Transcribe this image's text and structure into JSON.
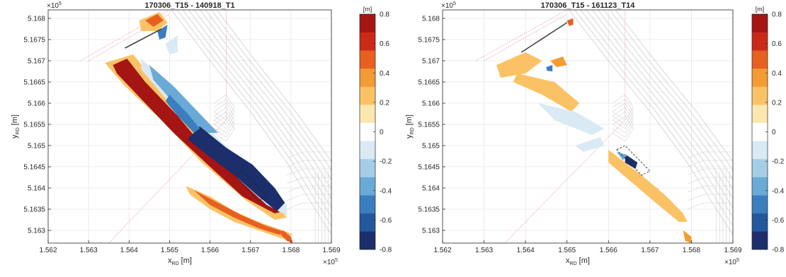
{
  "palette": [
    "#1c2e6b",
    "#23589f",
    "#3b7ec0",
    "#6aaad6",
    "#a5cde6",
    "#d9eaf5",
    "#ffffff",
    "#fde7b0",
    "#fbc265",
    "#f49b33",
    "#e8601f",
    "#cc2a19",
    "#a51513"
  ],
  "chart_data": [
    {
      "type": "heatmap",
      "title": "170306_T15 - 140918_T1",
      "xlabel_main": "x",
      "xlabel_sub": "RD",
      "xlabel_unit": "[m]",
      "ylabel_main": "y",
      "ylabel_sub": "RD",
      "ylabel_unit": "[m]",
      "x_ticks": [
        "1.562",
        "1.563",
        "1.564",
        "1.565",
        "1.566",
        "1.567",
        "1.568",
        "1.569"
      ],
      "y_ticks": [
        "5.163",
        "5.1635",
        "5.164",
        "5.1645",
        "5.165",
        "5.1655",
        "5.166",
        "5.1665",
        "5.167",
        "5.1675",
        "5.168"
      ],
      "x_multiplier": "×10",
      "x_multiplier_exp": "5",
      "y_multiplier": "×10",
      "y_multiplier_exp": "5",
      "xlim": [
        156200,
        156900
      ],
      "ylim": [
        516270,
        516820
      ],
      "colorbar": {
        "unit": "[m]",
        "range": [
          -0.8,
          0.8
        ],
        "ticks": [
          "0.8",
          "0.6",
          "0.4",
          "0.2",
          "0",
          "-0.2",
          "-0.4",
          "-0.6",
          "-0.8"
        ]
      },
      "regions": [
        {
          "level": 0.2,
          "points": [
            [
              156340,
              516695
            ],
            [
              156410,
              516715
            ],
            [
              156490,
              516620
            ],
            [
              156590,
              516500
            ],
            [
              156680,
              516430
            ],
            [
              156760,
              516370
            ],
            [
              156790,
              516330
            ],
            [
              156760,
              516325
            ],
            [
              156690,
              516370
            ],
            [
              156580,
              516460
            ],
            [
              156480,
              516560
            ],
            [
              156390,
              516640
            ]
          ]
        },
        {
          "level": 0.8,
          "points": [
            [
              156360,
              516690
            ],
            [
              156395,
              516705
            ],
            [
              156440,
              516650
            ],
            [
              156520,
              516570
            ],
            [
              156590,
              516490
            ],
            [
              156680,
              516420
            ],
            [
              156765,
              516365
            ],
            [
              156780,
              516345
            ],
            [
              156760,
              516340
            ],
            [
              156680,
              516380
            ],
            [
              156600,
              516450
            ],
            [
              156510,
              516530
            ],
            [
              156420,
              516620
            ],
            [
              156370,
              516670
            ]
          ]
        },
        {
          "level": 0.2,
          "points": [
            [
              156540,
              516405
            ],
            [
              156600,
              516380
            ],
            [
              156660,
              516345
            ],
            [
              156720,
              516320
            ],
            [
              156780,
              516300
            ],
            [
              156805,
              516290
            ],
            [
              156780,
              516280
            ],
            [
              156720,
              516300
            ],
            [
              156660,
              516320
            ],
            [
              156600,
              516350
            ],
            [
              156550,
              516385
            ]
          ]
        },
        {
          "level": 0.6,
          "points": [
            [
              156560,
              516395
            ],
            [
              156620,
              516365
            ],
            [
              156680,
              516335
            ],
            [
              156740,
              516310
            ],
            [
              156790,
              516295
            ],
            [
              156770,
              516290
            ],
            [
              156720,
              516305
            ],
            [
              156660,
              516330
            ],
            [
              156600,
              516360
            ]
          ]
        },
        {
          "level": 0.6,
          "points": [
            [
              156780,
              516300
            ],
            [
              156800,
              516285
            ],
            [
              156805,
              516270
            ],
            [
              156790,
              516275
            ],
            [
              156775,
              516290
            ]
          ]
        },
        {
          "level": -0.2,
          "points": [
            [
              156430,
              516705
            ],
            [
              156500,
              516645
            ],
            [
              156580,
              516555
            ],
            [
              156660,
              516480
            ],
            [
              156730,
              516410
            ],
            [
              156790,
              516360
            ],
            [
              156790,
              516335
            ],
            [
              156740,
              516360
            ],
            [
              156660,
              516430
            ],
            [
              156580,
              516510
            ],
            [
              156500,
              516600
            ],
            [
              156430,
              516680
            ]
          ]
        },
        {
          "level": -0.4,
          "points": [
            [
              156450,
              516690
            ],
            [
              156510,
              516640
            ],
            [
              156570,
              516580
            ],
            [
              156620,
              516530
            ],
            [
              156580,
              516530
            ],
            [
              156520,
              516590
            ],
            [
              156460,
              516655
            ]
          ]
        },
        {
          "level": -0.8,
          "points": [
            [
              156575,
              516545
            ],
            [
              156640,
              516495
            ],
            [
              156705,
              516455
            ],
            [
              156760,
              516400
            ],
            [
              156785,
              516365
            ],
            [
              156765,
              516345
            ],
            [
              156720,
              516380
            ],
            [
              156660,
              516430
            ],
            [
              156590,
              516480
            ],
            [
              156545,
              516515
            ]
          ]
        },
        {
          "level": -0.6,
          "points": [
            [
              156500,
              516620
            ],
            [
              156545,
              516575
            ],
            [
              156575,
              516540
            ],
            [
              156560,
              516530
            ],
            [
              156520,
              516570
            ],
            [
              156490,
              516605
            ]
          ]
        },
        {
          "level": 0.2,
          "points": [
            [
              156425,
              516795
            ],
            [
              156475,
              516815
            ],
            [
              156495,
              516790
            ],
            [
              156470,
              516770
            ],
            [
              156430,
              516770
            ]
          ]
        },
        {
          "level": 0.6,
          "points": [
            [
              156440,
              516795
            ],
            [
              156470,
              516810
            ],
            [
              156485,
              516795
            ],
            [
              156460,
              516780
            ]
          ]
        },
        {
          "level": -0.6,
          "points": [
            [
              156470,
              516770
            ],
            [
              156495,
              516785
            ],
            [
              156490,
              516755
            ],
            [
              156475,
              516750
            ]
          ]
        },
        {
          "level": -0.2,
          "points": [
            [
              156490,
              516740
            ],
            [
              156520,
              516760
            ],
            [
              156520,
              516720
            ],
            [
              156500,
              516715
            ]
          ]
        }
      ],
      "dam_line": [
        [
          156390,
          516730
        ],
        [
          156480,
          516775
        ]
      ],
      "dashed_box": [
        [
          156660,
          516430
        ],
        [
          156680,
          516440
        ],
        [
          156740,
          516380
        ],
        [
          156720,
          516370
        ]
      ]
    },
    {
      "type": "heatmap",
      "title": "170306_T15 - 161123_T14",
      "xlabel_main": "x",
      "xlabel_sub": "RD",
      "xlabel_unit": "[m]",
      "ylabel_main": "y",
      "ylabel_sub": "RD",
      "ylabel_unit": "[m]",
      "x_ticks": [
        "1.562",
        "1.563",
        "1.564",
        "1.565",
        "1.566",
        "1.567",
        "1.568",
        "1.569"
      ],
      "y_ticks": [
        "5.163",
        "5.1635",
        "5.164",
        "5.1645",
        "5.165",
        "5.1655",
        "5.166",
        "5.1665",
        "5.167",
        "5.1675",
        "5.168"
      ],
      "x_multiplier": "×10",
      "x_multiplier_exp": "5",
      "y_multiplier": "×10",
      "y_multiplier_exp": "5",
      "xlim": [
        156200,
        156900
      ],
      "ylim": [
        516270,
        516820
      ],
      "colorbar": {
        "unit": "[m]",
        "range": [
          -0.8,
          0.8
        ],
        "ticks": [
          "0.8",
          "0.6",
          "0.4",
          "0.2",
          "0",
          "-0.2",
          "-0.4",
          "-0.6",
          "-0.8"
        ]
      },
      "regions": [
        {
          "level": 0.2,
          "points": [
            [
              156330,
              516690
            ],
            [
              156400,
              516720
            ],
            [
              156440,
              516700
            ],
            [
              156400,
              516670
            ],
            [
              156340,
              516660
            ]
          ]
        },
        {
          "level": 0.2,
          "points": [
            [
              156380,
              516670
            ],
            [
              156470,
              516650
            ],
            [
              156530,
              516600
            ],
            [
              156510,
              516580
            ],
            [
              156440,
              516620
            ],
            [
              156370,
              516650
            ]
          ]
        },
        {
          "level": -0.2,
          "points": [
            [
              156430,
              516600
            ],
            [
              156520,
              516580
            ],
            [
              156590,
              516540
            ],
            [
              156560,
              516525
            ],
            [
              156470,
              516560
            ]
          ]
        },
        {
          "level": 0.2,
          "points": [
            [
              156600,
              516490
            ],
            [
              156680,
              516430
            ],
            [
              156740,
              516380
            ],
            [
              156780,
              516340
            ],
            [
              156790,
              516320
            ],
            [
              156770,
              516320
            ],
            [
              156720,
              516360
            ],
            [
              156660,
              516410
            ],
            [
              156600,
              516460
            ]
          ]
        },
        {
          "level": 0.4,
          "points": [
            [
              156780,
              516300
            ],
            [
              156800,
              516285
            ],
            [
              156800,
              516270
            ],
            [
              156785,
              516275
            ]
          ]
        },
        {
          "level": -0.8,
          "points": [
            [
              156640,
              516480
            ],
            [
              156670,
              516460
            ],
            [
              156665,
              516445
            ],
            [
              156640,
              516460
            ]
          ]
        },
        {
          "level": -0.4,
          "points": [
            [
              156620,
              516485
            ],
            [
              156645,
              516478
            ],
            [
              156635,
              516465
            ]
          ]
        },
        {
          "level": 0.4,
          "points": [
            [
              156460,
              516700
            ],
            [
              156490,
              516710
            ],
            [
              156500,
              516690
            ],
            [
              156475,
              516685
            ]
          ]
        },
        {
          "level": 0.6,
          "points": [
            [
              156500,
              516795
            ],
            [
              156515,
              516800
            ],
            [
              156515,
              516785
            ],
            [
              156505,
              516782
            ]
          ]
        },
        {
          "level": -0.6,
          "points": [
            [
              156450,
              516685
            ],
            [
              156465,
              516690
            ],
            [
              156465,
              516675
            ],
            [
              156452,
              516676
            ]
          ]
        },
        {
          "level": -0.2,
          "points": [
            [
              156520,
              516500
            ],
            [
              156580,
              516520
            ],
            [
              156590,
              516500
            ],
            [
              156540,
              516485
            ]
          ]
        },
        {
          "level": 0.2,
          "points": [
            [
              156690,
              516390
            ],
            [
              156720,
              516400
            ],
            [
              156725,
              516385
            ],
            [
              156700,
              516378
            ]
          ]
        }
      ],
      "dam_line": [
        [
          156390,
          516720
        ],
        [
          156500,
          516790
        ]
      ],
      "dashed_box": [
        [
          156620,
          516490
        ],
        [
          156640,
          516500
        ],
        [
          156700,
          516440
        ],
        [
          156680,
          516430
        ]
      ]
    }
  ]
}
